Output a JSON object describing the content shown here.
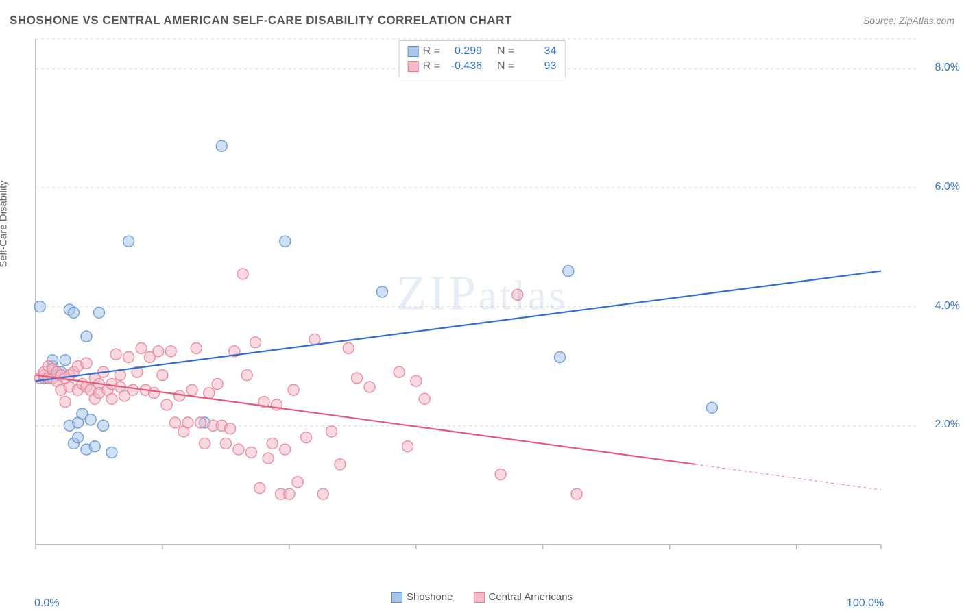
{
  "title": "SHOSHONE VS CENTRAL AMERICAN SELF-CARE DISABILITY CORRELATION CHART",
  "source": "Source: ZipAtlas.com",
  "ylabel": "Self-Care Disability",
  "watermark_zip": "ZIP",
  "watermark_atlas": "atlas",
  "chart": {
    "type": "scatter",
    "xlim": [
      0,
      100
    ],
    "ylim": [
      0,
      8.5
    ],
    "x_ticks": [
      0,
      15,
      30,
      45,
      60,
      75,
      90,
      100
    ],
    "x_tick_labels": {
      "0": "0.0%",
      "100": "100.0%"
    },
    "y_ticks": [
      2.0,
      4.0,
      6.0,
      8.0
    ],
    "y_tick_labels": [
      "2.0%",
      "4.0%",
      "6.0%",
      "8.0%"
    ],
    "grid_color": "#d8d8d8",
    "axis_color": "#999999",
    "background_color": "#ffffff",
    "marker_radius": 8,
    "marker_opacity": 0.55,
    "marker_stroke_opacity": 0.85,
    "line_width": 2.2,
    "series": [
      {
        "name": "Shoshone",
        "color_fill": "#a9c7ea",
        "color_stroke": "#5b8fd6",
        "line_color": "#2f6fd0",
        "R": "0.299",
        "N": "34",
        "trend": {
          "x1": 0,
          "y1": 2.75,
          "x2": 100,
          "y2": 4.6
        },
        "points": [
          [
            0.5,
            4.0
          ],
          [
            1,
            2.8
          ],
          [
            1.5,
            2.8
          ],
          [
            2,
            3.0
          ],
          [
            2,
            3.1
          ],
          [
            2.5,
            2.85
          ],
          [
            3,
            2.9
          ],
          [
            3.5,
            3.1
          ],
          [
            4,
            3.95
          ],
          [
            4.5,
            3.9
          ],
          [
            4,
            2.0
          ],
          [
            4.5,
            1.7
          ],
          [
            5,
            1.8
          ],
          [
            5,
            2.05
          ],
          [
            5.5,
            2.2
          ],
          [
            6,
            1.6
          ],
          [
            6,
            3.5
          ],
          [
            6.5,
            2.1
          ],
          [
            7,
            1.65
          ],
          [
            7.5,
            3.9
          ],
          [
            8,
            2.0
          ],
          [
            9,
            1.55
          ],
          [
            11,
            5.1
          ],
          [
            20,
            2.05
          ],
          [
            22,
            6.7
          ],
          [
            29.5,
            5.1
          ],
          [
            41,
            4.25
          ],
          [
            63,
            4.6
          ],
          [
            62,
            3.15
          ],
          [
            80,
            2.3
          ]
        ]
      },
      {
        "name": "Central Americans",
        "color_fill": "#f2b9c6",
        "color_stroke": "#e77c96",
        "line_color": "#e35a7d",
        "R": "-0.436",
        "N": "93",
        "trend": {
          "x1": 0,
          "y1": 2.85,
          "x2": 78,
          "y2": 1.35
        },
        "trend_ext": {
          "x1": 78,
          "y1": 1.35,
          "x2": 100,
          "y2": 0.92
        },
        "points": [
          [
            0.5,
            2.8
          ],
          [
            1,
            2.85
          ],
          [
            1,
            2.9
          ],
          [
            1.5,
            2.8
          ],
          [
            1.5,
            3.0
          ],
          [
            2,
            2.8
          ],
          [
            2,
            2.95
          ],
          [
            2.5,
            2.75
          ],
          [
            2.5,
            2.9
          ],
          [
            3,
            2.85
          ],
          [
            3,
            2.6
          ],
          [
            3.5,
            2.8
          ],
          [
            3.5,
            2.4
          ],
          [
            4,
            2.65
          ],
          [
            4,
            2.85
          ],
          [
            4.5,
            2.9
          ],
          [
            5,
            2.6
          ],
          [
            5,
            3.0
          ],
          [
            5.5,
            2.7
          ],
          [
            6,
            2.65
          ],
          [
            6,
            3.05
          ],
          [
            6.5,
            2.6
          ],
          [
            7,
            2.45
          ],
          [
            7,
            2.8
          ],
          [
            7.5,
            2.7
          ],
          [
            7.5,
            2.55
          ],
          [
            8,
            2.9
          ],
          [
            8.5,
            2.6
          ],
          [
            9,
            2.45
          ],
          [
            9,
            2.7
          ],
          [
            9.5,
            3.2
          ],
          [
            10,
            2.65
          ],
          [
            10,
            2.85
          ],
          [
            10.5,
            2.5
          ],
          [
            11,
            3.15
          ],
          [
            11.5,
            2.6
          ],
          [
            12,
            2.9
          ],
          [
            12.5,
            3.3
          ],
          [
            13,
            2.6
          ],
          [
            13.5,
            3.15
          ],
          [
            14,
            2.55
          ],
          [
            14.5,
            3.25
          ],
          [
            15,
            2.85
          ],
          [
            15.5,
            2.35
          ],
          [
            16,
            3.25
          ],
          [
            16.5,
            2.05
          ],
          [
            17,
            2.5
          ],
          [
            17.5,
            1.9
          ],
          [
            18,
            2.05
          ],
          [
            18.5,
            2.6
          ],
          [
            19,
            3.3
          ],
          [
            19.5,
            2.05
          ],
          [
            20,
            1.7
          ],
          [
            20.5,
            2.55
          ],
          [
            21,
            2.0
          ],
          [
            21.5,
            2.7
          ],
          [
            22,
            2.0
          ],
          [
            22.5,
            1.7
          ],
          [
            23,
            1.95
          ],
          [
            23.5,
            3.25
          ],
          [
            24,
            1.6
          ],
          [
            24.5,
            4.55
          ],
          [
            25,
            2.85
          ],
          [
            25.5,
            1.55
          ],
          [
            26,
            3.4
          ],
          [
            26.5,
            0.95
          ],
          [
            27,
            2.4
          ],
          [
            27.5,
            1.45
          ],
          [
            28,
            1.7
          ],
          [
            28.5,
            2.35
          ],
          [
            29,
            0.85
          ],
          [
            29.5,
            1.6
          ],
          [
            30,
            0.85
          ],
          [
            30.5,
            2.6
          ],
          [
            31,
            1.05
          ],
          [
            32,
            1.8
          ],
          [
            33,
            3.45
          ],
          [
            34,
            0.85
          ],
          [
            35,
            1.9
          ],
          [
            36,
            1.35
          ],
          [
            37,
            3.3
          ],
          [
            38,
            2.8
          ],
          [
            39.5,
            2.65
          ],
          [
            43,
            2.9
          ],
          [
            44,
            1.65
          ],
          [
            45,
            2.75
          ],
          [
            46,
            2.45
          ],
          [
            55,
            1.18
          ],
          [
            57,
            4.2
          ],
          [
            64,
            0.85
          ]
        ]
      }
    ]
  },
  "legend": {
    "bottom": [
      {
        "label": "Shoshone",
        "fill": "#a9c7ea",
        "stroke": "#5b8fd6"
      },
      {
        "label": "Central Americans",
        "fill": "#f2b9c6",
        "stroke": "#e77c96"
      }
    ],
    "R_label": "R =",
    "N_label": "N ="
  }
}
